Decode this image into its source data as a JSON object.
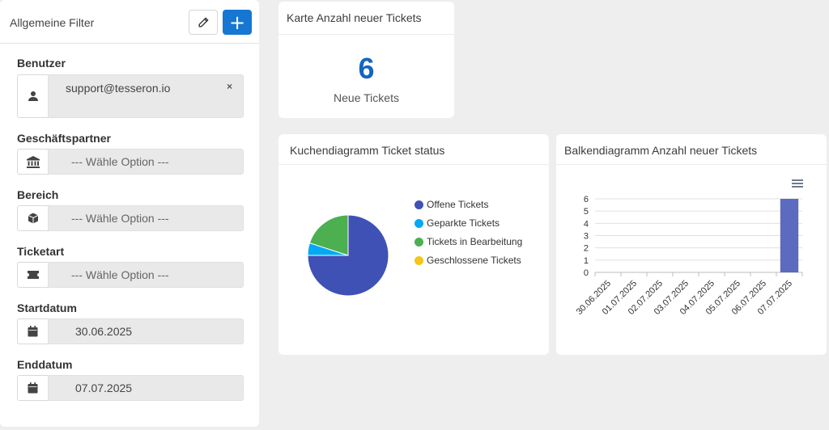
{
  "filter": {
    "title": "Allgemeine Filter",
    "fields": {
      "user": {
        "label": "Benutzer",
        "value": "support@tesseron.io",
        "clear": "×"
      },
      "partner": {
        "label": "Geschäftspartner",
        "placeholder": "--- Wähle Option ---"
      },
      "area": {
        "label": "Bereich",
        "placeholder": "--- Wähle Option ---"
      },
      "ticket_type": {
        "label": "Ticketart",
        "placeholder": "--- Wähle Option ---"
      },
      "start_date": {
        "label": "Startdatum",
        "value": "30.06.2025"
      },
      "end_date": {
        "label": "Enddatum",
        "value": "07.07.2025"
      }
    },
    "icons": {
      "edit": "pencil-icon",
      "add": "plus-icon"
    },
    "add_glyph": "+"
  },
  "kpi": {
    "title": "Karte Anzahl neuer Tickets",
    "value": "6",
    "label": "Neue Tickets"
  },
  "pie": {
    "title": "Kuchendiagramm Ticket status",
    "chart_data": {
      "type": "pie",
      "categories": [
        "Offene Tickets",
        "Geparkte Tickets",
        "Tickets in Bearbeitung",
        "Geschlossene Tickets"
      ],
      "values": [
        4.5,
        0.3,
        1.2,
        0
      ],
      "colors": [
        "#3f51b5",
        "#03a9f4",
        "#4caf50",
        "#f5c518"
      ],
      "legend": "right"
    }
  },
  "bar": {
    "title": "Balkendiagramm Anzahl neuer Tickets",
    "chart_data": {
      "type": "bar",
      "categories": [
        "30.06.2025",
        "01.07.2025",
        "02.07.2025",
        "03.07.2025",
        "04.07.2025",
        "05.07.2025",
        "06.07.2025",
        "07.07.2025"
      ],
      "values": [
        0,
        0,
        0,
        0,
        0,
        0,
        0,
        6
      ],
      "ylim": [
        0,
        6
      ],
      "yticks": [
        0,
        1,
        2,
        3,
        4,
        5,
        6
      ],
      "color": "#5c6bc0",
      "grid": true
    }
  },
  "colors": {
    "accent": "#1677d2",
    "kpi": "#1565c0"
  }
}
